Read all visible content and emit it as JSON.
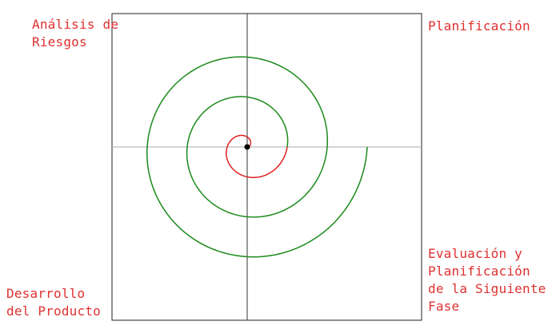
{
  "quadrants": {
    "top_left": "Análisis de\nRiesgos",
    "top_right": "Planificación",
    "bottom_left": "Desarrollo\ndel Producto",
    "bottom_right": "Evaluación y\nPlanificación\nde la Siguiente\nFase"
  },
  "colors": {
    "label": "#e03030",
    "spiral_inner": "#e02020",
    "spiral_outer": "#1a8a1a",
    "axis_vertical": "#333333",
    "axis_horizontal": "#aaaaaa",
    "frame": "#222222",
    "center_dot": "#000000"
  }
}
